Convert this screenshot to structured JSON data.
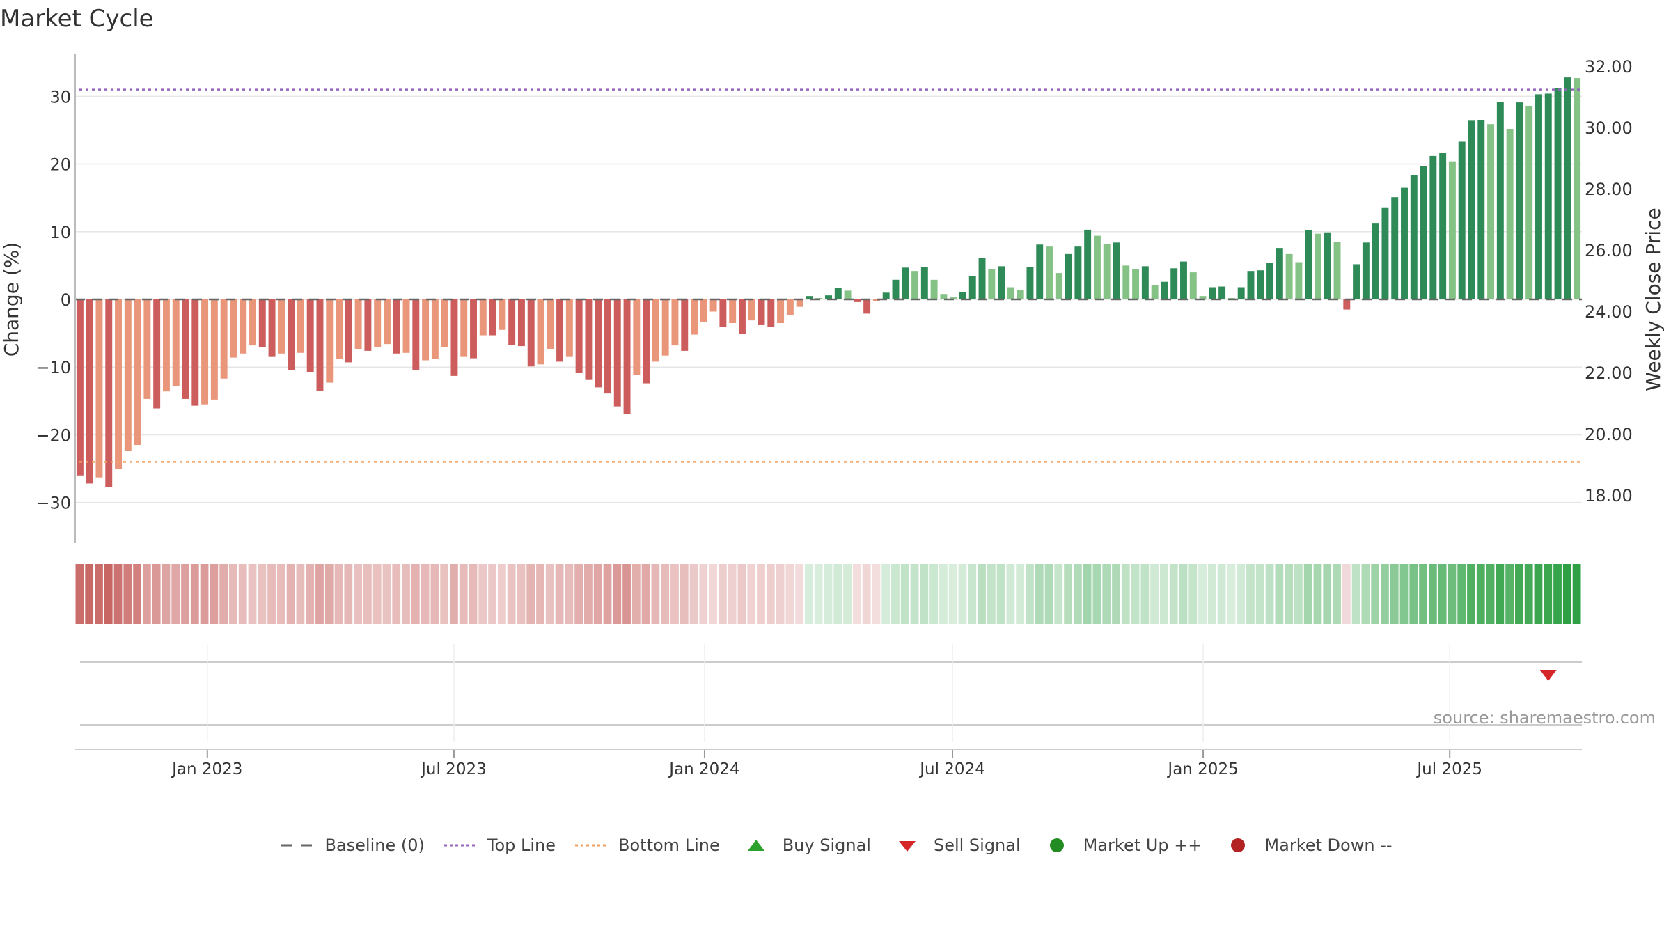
{
  "title": "Market Cycle",
  "source": "source: sharemaestro.com",
  "legend": [
    {
      "label": "Baseline (0)",
      "kind": "dash",
      "color": "#666666"
    },
    {
      "label": "Top Line",
      "kind": "dot",
      "color": "#9467bd"
    },
    {
      "label": "Bottom Line",
      "kind": "dot",
      "color": "#f0a060"
    },
    {
      "label": "Buy Signal",
      "kind": "tri-up",
      "color": "#2ca02c"
    },
    {
      "label": "Sell Signal",
      "kind": "tri-down",
      "color": "#d62728"
    },
    {
      "label": "Market Up ++",
      "kind": "circle",
      "color": "#228b22"
    },
    {
      "label": "Market Down --",
      "kind": "circle",
      "color": "#b22222"
    }
  ],
  "colors": {
    "neg_dark": "#cd5c5c",
    "neg_light": "#e9967a",
    "pos_dark": "#2e8b57",
    "pos_light": "#85c285",
    "heat_neg": "#c0504d",
    "heat_pos": "#2ea043"
  },
  "chart_data": {
    "type": "bar",
    "title": "Market Cycle",
    "ylabel": "Change (%)",
    "y2label": "Weekly Close Price",
    "ylim": [
      -36,
      36
    ],
    "yticks": [
      30,
      20,
      10,
      0,
      -10,
      -20,
      -30
    ],
    "y2ticks": [
      "32.00",
      "30.00",
      "28.00",
      "26.00",
      "24.00",
      "22.00",
      "20.00",
      "18.00"
    ],
    "top_line": 31,
    "bottom_line": -24,
    "x_start": "2022-09-26",
    "x_end": "2025-10-06",
    "xticks": [
      {
        "date": "2023-01-01",
        "label": "Jan 2023"
      },
      {
        "date": "2023-07-01",
        "label": "Jul 2023"
      },
      {
        "date": "2024-01-01",
        "label": "Jan 2024"
      },
      {
        "date": "2024-07-01",
        "label": "Jul 2024"
      },
      {
        "date": "2025-01-01",
        "label": "Jan 2025"
      },
      {
        "date": "2025-07-01",
        "label": "Jul 2025"
      }
    ],
    "values": [
      -26,
      -27.2,
      -26.3,
      -27.7,
      -25,
      -22.4,
      -21.5,
      -14.7,
      -16.1,
      -13.6,
      -12.8,
      -14.7,
      -15.7,
      -15.5,
      -14.8,
      -11.7,
      -8.6,
      -8.0,
      -6.8,
      -7.0,
      -8.4,
      -8.0,
      -10.4,
      -7.9,
      -10.7,
      -13.5,
      -12.3,
      -8.8,
      -9.3,
      -7.3,
      -7.6,
      -7.0,
      -6.6,
      -8.0,
      -7.9,
      -10.4,
      -9.0,
      -8.8,
      -7.0,
      -11.3,
      -8.4,
      -8.7,
      -5.3,
      -5.3,
      -4.5,
      -6.7,
      -6.9,
      -9.9,
      -9.6,
      -7.3,
      -9.2,
      -8.4,
      -10.9,
      -11.9,
      -13.0,
      -13.9,
      -15.8,
      -16.9,
      -11.2,
      -12.4,
      -9.2,
      -8.3,
      -6.8,
      -7.6,
      -5.2,
      -3.3,
      -1.8,
      -4.1,
      -3.5,
      -5.1,
      -3.1,
      -3.8,
      -4.1,
      -3.5,
      -2.3,
      -1.1,
      0.5,
      0.2,
      0.6,
      1.7,
      1.3,
      -0.4,
      -2.1,
      -0.3,
      1.0,
      2.9,
      4.7,
      4.2,
      4.8,
      2.9,
      0.8,
      0.3,
      1.1,
      3.5,
      6.1,
      4.5,
      4.9,
      1.8,
      1.4,
      4.8,
      8.1,
      7.8,
      3.9,
      6.7,
      7.8,
      10.3,
      9.4,
      8.2,
      8.4,
      5.0,
      4.5,
      4.9,
      2.1,
      2.6,
      4.6,
      5.6,
      4.0,
      0.5,
      1.8,
      1.9,
      0.2,
      1.8,
      4.2,
      4.3,
      5.4,
      7.6,
      6.7,
      5.5,
      10.2,
      9.7,
      9.9,
      8.5,
      -1.5,
      5.2,
      8.4,
      11.3,
      13.5,
      15.1,
      16.5,
      18.4,
      19.7,
      21.2,
      21.6,
      20.4,
      23.3,
      26.4,
      26.5,
      25.9,
      29.2,
      25.2,
      29.1,
      28.6,
      30.3,
      30.4,
      31.2,
      32.8,
      32.7
    ],
    "sell_signals": [
      {
        "index": 153
      }
    ],
    "buy_signals": []
  }
}
